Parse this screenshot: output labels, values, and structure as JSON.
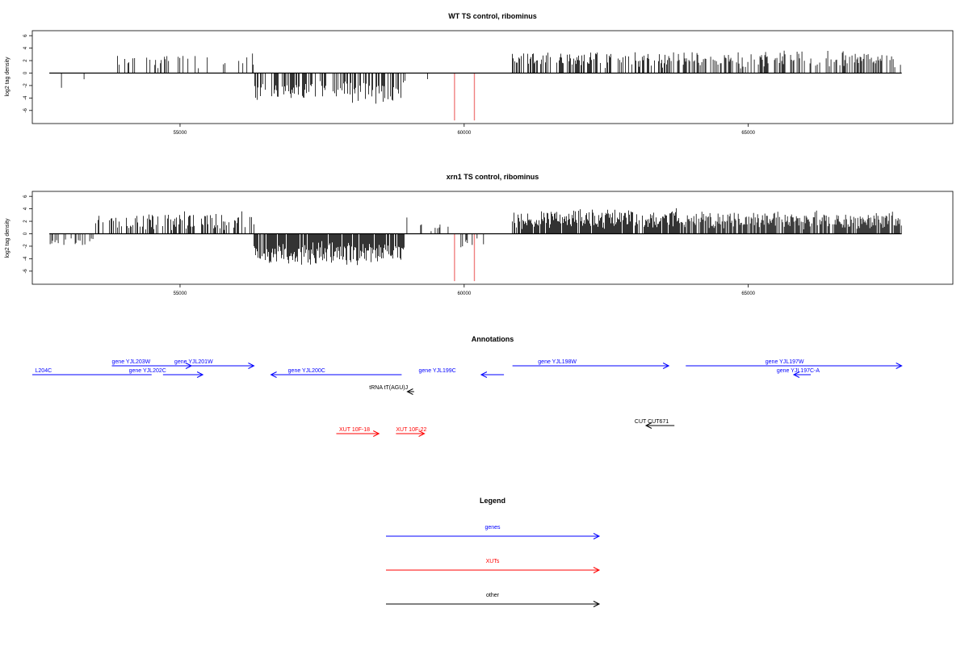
{
  "chart_data": [
    {
      "type": "bar",
      "title": "WT TS control, ribominus",
      "ylabel": "log2 tag density",
      "xlim": [
        52400,
        68600
      ],
      "ylim": [
        -8.1,
        6.8
      ],
      "xticks": [
        55000,
        60000,
        65000
      ],
      "yticks": [
        -6,
        -4,
        -2,
        0,
        2,
        4,
        6
      ],
      "baseline": [
        52700,
        67700
      ],
      "highlight_color": "#f08080",
      "highlight_values": [
        {
          "x": 59830,
          "y": -7.6
        },
        {
          "x": 60180,
          "y": -7.6
        }
      ],
      "bar_color": "#000000",
      "segments": [
        {
          "start": 52700,
          "end": 53400,
          "density": 0.1,
          "mean": -1.6,
          "spread": 0.8,
          "seed": 1
        },
        {
          "start": 53400,
          "end": 53700,
          "density": 0.04,
          "mean": 1.0,
          "spread": 0.4,
          "seed": 2
        },
        {
          "start": 53700,
          "end": 54200,
          "density": 0.18,
          "mean": 1.8,
          "spread": 1.0,
          "seed": 3
        },
        {
          "start": 54200,
          "end": 56300,
          "density": 0.14,
          "mean": 1.9,
          "spread": 1.0,
          "seed": 4
        },
        {
          "start": 56300,
          "end": 58900,
          "density": 0.55,
          "mean": -3.0,
          "spread": 1.4,
          "seed": 5
        },
        {
          "start": 58900,
          "end": 59400,
          "density": 0.04,
          "mean": -1.5,
          "spread": 0.5,
          "seed": 6
        },
        {
          "start": 60200,
          "end": 60600,
          "density": 0.04,
          "mean": -2.0,
          "spread": 0.6,
          "seed": 7
        },
        {
          "start": 60850,
          "end": 63600,
          "density": 0.55,
          "mean": 2.2,
          "spread": 1.1,
          "seed": 8
        },
        {
          "start": 63600,
          "end": 67700,
          "density": 0.45,
          "mean": 2.2,
          "spread": 1.1,
          "seed": 9
        }
      ]
    },
    {
      "type": "bar",
      "title": "xrn1 TS control, ribominus",
      "ylabel": "log2 tag density",
      "xlim": [
        52400,
        68600
      ],
      "ylim": [
        -8.1,
        6.8
      ],
      "xticks": [
        55000,
        60000,
        65000
      ],
      "yticks": [
        -6,
        -4,
        -2,
        0,
        2,
        4,
        6
      ],
      "baseline": [
        52700,
        67700
      ],
      "highlight_color": "#f08080",
      "highlight_values": [
        {
          "x": 59830,
          "y": -7.6
        },
        {
          "x": 60180,
          "y": -7.6
        }
      ],
      "bar_color": "#000000",
      "segments": [
        {
          "start": 52700,
          "end": 53500,
          "density": 0.35,
          "mean": -1.3,
          "spread": 0.6,
          "seed": 11
        },
        {
          "start": 53500,
          "end": 56300,
          "density": 0.45,
          "mean": 2.0,
          "spread": 1.2,
          "seed": 12
        },
        {
          "start": 56300,
          "end": 58950,
          "density": 0.9,
          "mean": -3.2,
          "spread": 1.5,
          "seed": 13
        },
        {
          "start": 58950,
          "end": 59900,
          "density": 0.15,
          "mean": 1.5,
          "spread": 1.0,
          "seed": 14
        },
        {
          "start": 59900,
          "end": 60700,
          "density": 0.1,
          "mean": -1.5,
          "spread": 0.8,
          "seed": 15
        },
        {
          "start": 60850,
          "end": 63800,
          "density": 0.9,
          "mean": 2.4,
          "spread": 1.3,
          "seed": 16
        },
        {
          "start": 63800,
          "end": 67700,
          "density": 0.8,
          "mean": 2.2,
          "spread": 1.2,
          "seed": 17
        }
      ]
    }
  ],
  "annotations": {
    "title": "Annotations",
    "colors": {
      "genes": "#0000ff",
      "XUTs": "#ff0000",
      "other": "#000000"
    },
    "items": [
      {
        "label": "L204C",
        "class": "genes",
        "start": 52400,
        "end": 54500,
        "row": 2,
        "label_x": 52450
      },
      {
        "label": "gene YJL203W",
        "class": "genes",
        "start": 53800,
        "end": 55200,
        "row": 1,
        "label_x": 53800
      },
      {
        "label": "gene YJL202C",
        "class": "genes",
        "start": 54700,
        "end": 55400,
        "row": 2,
        "label_x": 54100
      },
      {
        "label": "gene YJL201W",
        "class": "genes",
        "start": 54900,
        "end": 56300,
        "row": 1,
        "label_x": 54900
      },
      {
        "label": "gene YJL200C",
        "class": "genes",
        "start": 58900,
        "end": 56600,
        "row": 2,
        "label_x": 56900
      },
      {
        "label": "gene YJL199C",
        "class": "genes",
        "start": 60700,
        "end": 60300,
        "row": 2,
        "label_x": 59200
      },
      {
        "label": "gene YJL198W",
        "class": "genes",
        "start": 60850,
        "end": 63600,
        "row": 1,
        "label_x": 61300
      },
      {
        "label": "gene YJL197W",
        "class": "genes",
        "start": 63900,
        "end": 67700,
        "row": 1,
        "label_x": 65300
      },
      {
        "label": "gene YJL197C-A",
        "class": "genes",
        "start": 66100,
        "end": 65800,
        "row": 2,
        "label_x": 65500
      },
      {
        "label": "tRNA tT(AGU)J",
        "class": "other",
        "start": 59120,
        "end": 59000,
        "row": 3,
        "label_x": 58330
      },
      {
        "label": "XUT 10F-18",
        "class": "XUTs",
        "start": 57750,
        "end": 58500,
        "row": 5,
        "label_x": 57800
      },
      {
        "label": "XUT 10F-22",
        "class": "XUTs",
        "start": 58800,
        "end": 59300,
        "row": 5,
        "label_x": 58800
      },
      {
        "label": "CUT CUT671",
        "class": "other",
        "start": 63700,
        "end": 63200,
        "row": 4,
        "label_x": 63000
      }
    ]
  },
  "legend": {
    "title": "Legend",
    "items": [
      {
        "label": "genes",
        "color": "#0000ff"
      },
      {
        "label": "XUTs",
        "color": "#ff0000"
      },
      {
        "label": "other",
        "color": "#000000"
      }
    ]
  }
}
